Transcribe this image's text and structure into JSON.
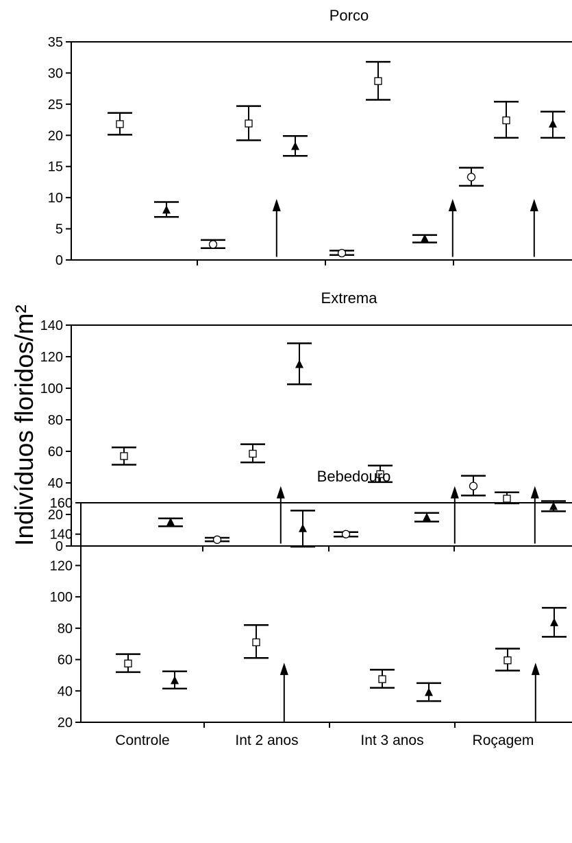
{
  "ylabel": "Indivíduos floridos/m²",
  "categories": [
    "Controle",
    "Int 2 anos",
    "Int 3 anos",
    "Roçagem"
  ],
  "chart_data": [
    {
      "type": "scatter",
      "title": "Porco",
      "ylim": [
        0,
        35
      ],
      "yticks": [
        0,
        5,
        10,
        15,
        20,
        25,
        30,
        35
      ],
      "categories": [
        "Controle",
        "Int 2 anos",
        "Int 3 anos",
        "Roçagem"
      ],
      "show_xticklabels": false,
      "markers": [
        "square",
        "triangle",
        "circle"
      ],
      "points": [
        {
          "cat": 0,
          "slot": 0,
          "marker": "square",
          "mean": 21.8,
          "lo": 20.1,
          "hi": 23.6
        },
        {
          "cat": 0,
          "slot": 1,
          "marker": "triangle",
          "mean": 8.0,
          "lo": 6.9,
          "hi": 9.3
        },
        {
          "cat": 0,
          "slot": 2,
          "marker": "circle",
          "mean": 2.5,
          "lo": 1.9,
          "hi": 3.2
        },
        {
          "cat": 1,
          "slot": 0,
          "marker": "square",
          "mean": 21.9,
          "lo": 19.2,
          "hi": 24.7
        },
        {
          "cat": 1,
          "slot": 1,
          "marker": "triangle",
          "mean": 18.2,
          "lo": 16.7,
          "hi": 19.9
        },
        {
          "cat": 1,
          "slot": 2,
          "marker": "circle",
          "mean": 1.1,
          "lo": 0.8,
          "hi": 1.5
        },
        {
          "cat": 2,
          "slot": 0,
          "marker": "square",
          "mean": 28.7,
          "lo": 25.7,
          "hi": 31.8
        },
        {
          "cat": 2,
          "slot": 1,
          "marker": "triangle",
          "mean": 3.4,
          "lo": 2.8,
          "hi": 4.0
        },
        {
          "cat": 2,
          "slot": 2,
          "marker": "circle",
          "mean": 13.3,
          "lo": 11.9,
          "hi": 14.8
        },
        {
          "cat": 3,
          "slot": 0,
          "marker": "square",
          "mean": 22.4,
          "lo": 19.6,
          "hi": 25.4
        },
        {
          "cat": 3,
          "slot": 1,
          "marker": "triangle",
          "mean": 21.8,
          "lo": 19.6,
          "hi": 23.8
        },
        {
          "cat": 3,
          "slot": 2,
          "marker": "circle",
          "mean": 3.1,
          "lo": 2.5,
          "hi": 3.8
        }
      ],
      "arrows": [
        {
          "cat": 1,
          "slot": 0.6,
          "from": 0.5,
          "to": 9.8
        },
        {
          "cat": 2,
          "slot": 1.6,
          "from": 0.5,
          "to": 9.8
        },
        {
          "cat": 3,
          "slot": 0.6,
          "from": 0.5,
          "to": 9.8
        }
      ]
    },
    {
      "type": "scatter",
      "title": "Extrema",
      "ylim": [
        0,
        140
      ],
      "yticks": [
        0,
        20,
        40,
        60,
        80,
        100,
        120,
        140
      ],
      "categories": [
        "Controle",
        "Int 2 anos",
        "Int 3 anos",
        "Roçagem"
      ],
      "show_xticklabels": false,
      "markers": [
        "square",
        "triangle",
        "circle"
      ],
      "points": [
        {
          "cat": 0,
          "slot": 0,
          "marker": "square",
          "mean": 57,
          "lo": 51.5,
          "hi": 62.5
        },
        {
          "cat": 0,
          "slot": 1,
          "marker": "triangle",
          "mean": 15,
          "lo": 12.5,
          "hi": 17.5
        },
        {
          "cat": 0,
          "slot": 2,
          "marker": "circle",
          "mean": 4,
          "lo": 3,
          "hi": 5.2
        },
        {
          "cat": 1,
          "slot": 0,
          "marker": "square",
          "mean": 58.5,
          "lo": 53,
          "hi": 64.5
        },
        {
          "cat": 1,
          "slot": 1,
          "marker": "triangle",
          "mean": 115,
          "lo": 102.5,
          "hi": 128.5
        },
        {
          "cat": 1,
          "slot": 2,
          "marker": "circle",
          "mean": 7.5,
          "lo": 6,
          "hi": 8.8
        },
        {
          "cat": 2,
          "slot": 0,
          "marker": "square",
          "mean": 45.5,
          "lo": 40.5,
          "hi": 51
        },
        {
          "cat": 2,
          "slot": 1,
          "marker": "triangle",
          "mean": 18,
          "lo": 15.5,
          "hi": 21
        },
        {
          "cat": 2,
          "slot": 2,
          "marker": "circle",
          "mean": 38,
          "lo": 32,
          "hi": 44.5
        },
        {
          "cat": 3,
          "slot": 0,
          "marker": "square",
          "mean": 30,
          "lo": 27,
          "hi": 34
        },
        {
          "cat": 3,
          "slot": 1,
          "marker": "triangle",
          "mean": 25,
          "lo": 22,
          "hi": 28.5
        },
        {
          "cat": 3,
          "slot": 2,
          "marker": "circle",
          "mean": 8.5,
          "lo": 7,
          "hi": 10.2
        }
      ],
      "arrows": [
        {
          "cat": 1,
          "slot": 0.6,
          "from": 1.5,
          "to": 38
        },
        {
          "cat": 2,
          "slot": 1.6,
          "from": 1.5,
          "to": 38
        },
        {
          "cat": 3,
          "slot": 0.6,
          "from": 1.5,
          "to": 38
        }
      ]
    },
    {
      "type": "scatter",
      "title": "Bebedouro",
      "ylim": [
        20,
        160
      ],
      "yticks": [
        20,
        40,
        60,
        80,
        100,
        120,
        140,
        160
      ],
      "categories": [
        "Controle",
        "Int 2 anos",
        "Int 3 anos",
        "Roçagem"
      ],
      "show_xticklabels": true,
      "markers": [
        "square",
        "triangle"
      ],
      "points": [
        {
          "cat": 0,
          "slot": 0,
          "marker": "square",
          "mean": 57.5,
          "lo": 52,
          "hi": 63.5
        },
        {
          "cat": 0,
          "slot": 1,
          "marker": "triangle",
          "mean": 46.5,
          "lo": 41.5,
          "hi": 52.5
        },
        {
          "cat": 1,
          "slot": 0,
          "marker": "square",
          "mean": 71,
          "lo": 61,
          "hi": 82
        },
        {
          "cat": 1,
          "slot": 1,
          "marker": "triangle",
          "mean": 143.5,
          "lo": 132,
          "hi": 155
        },
        {
          "cat": 2,
          "slot": 0,
          "marker": "square",
          "mean": 47.5,
          "lo": 42,
          "hi": 53.5
        },
        {
          "cat": 2,
          "slot": 1,
          "marker": "triangle",
          "mean": 39,
          "lo": 33.5,
          "hi": 45
        },
        {
          "cat": 3,
          "slot": 0,
          "marker": "square",
          "mean": 59.5,
          "lo": 53,
          "hi": 67
        },
        {
          "cat": 3,
          "slot": 1,
          "marker": "triangle",
          "mean": 83.5,
          "lo": 74.5,
          "hi": 93
        }
      ],
      "arrows": [
        {
          "cat": 1,
          "slot": 0.6,
          "from": 20.5,
          "to": 58
        },
        {
          "cat": 3,
          "slot": 0.6,
          "from": 20.5,
          "to": 58
        }
      ]
    }
  ]
}
